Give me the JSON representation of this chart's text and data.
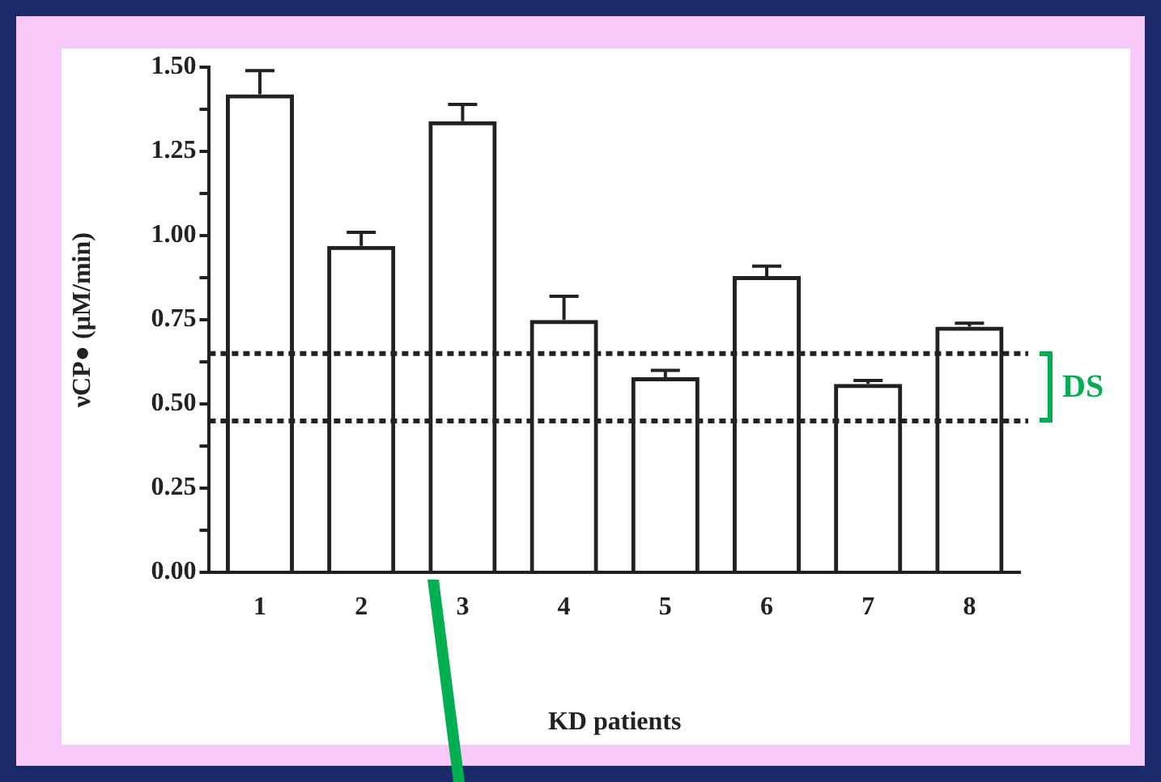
{
  "chart_data": {
    "type": "bar",
    "xlabel": "KD patients",
    "ylabel": "νCP● (μM/min)",
    "categories": [
      "1",
      "2",
      "3",
      "4",
      "5",
      "6",
      "7",
      "8"
    ],
    "values": [
      1.42,
      0.97,
      1.34,
      0.75,
      0.58,
      0.88,
      0.56,
      0.73
    ],
    "errors": [
      0.07,
      0.04,
      0.05,
      0.07,
      0.02,
      0.03,
      0.01,
      0.01
    ],
    "color": "#222222",
    "ylim": [
      0,
      1.5
    ],
    "yticks": [
      {
        "value": 0,
        "label": "0.00"
      },
      {
        "value": 0.125,
        "label": null
      },
      0.25,
      {
        "value": 0.375,
        "label": null
      },
      {
        "value": 0.5,
        "label": "0.50"
      },
      {
        "value": 0.625,
        "label": null
      },
      0.75,
      {
        "value": 0.875,
        "label": null
      },
      {
        "value": 1,
        "label": "1.00"
      },
      {
        "value": 1.125,
        "label": null
      },
      1.25,
      {
        "value": 1.375,
        "label": null
      },
      {
        "value": 1.5,
        "label": "1.50"
      }
    ],
    "grid": false,
    "ref_lines": [
      {
        "axis": "y",
        "value": 0.65,
        "line_style": "dotted",
        "color": "#222222"
      },
      {
        "axis": "y",
        "value": 0.45,
        "line_style": "dotted",
        "color": "#222222"
      }
    ],
    "annotations": [
      "DS"
    ],
    "legend": false
  }
}
